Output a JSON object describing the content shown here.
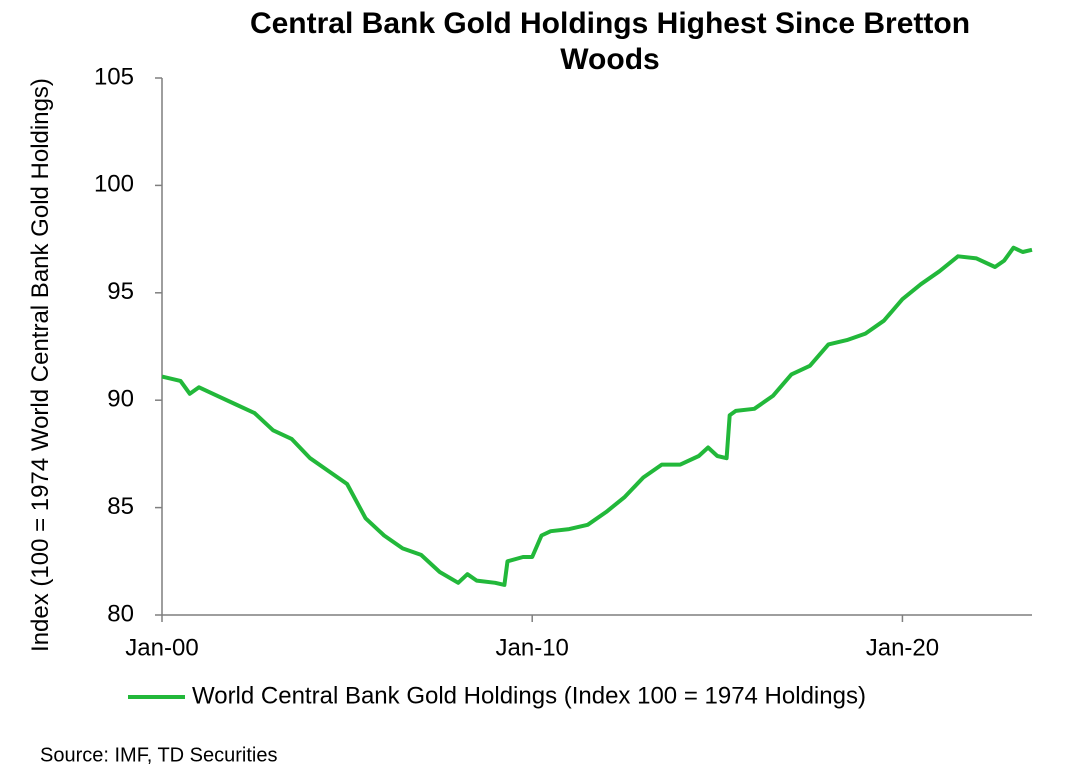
{
  "chart_data": {
    "type": "line",
    "title": "Central Bank Gold Holdings Highest Since Bretton Woods",
    "y_label": "Index (100 = 1974 World Central Bank Gold Holdings)",
    "source": "Source: IMF, TD Securities",
    "x": [
      "Jan-00",
      "Jul-00",
      "Oct-00",
      "Jan-01",
      "Jul-01",
      "Jan-02",
      "Jul-02",
      "Jan-03",
      "Jul-03",
      "Jan-04",
      "Jul-04",
      "Jan-05",
      "Jul-05",
      "Jan-06",
      "Jul-06",
      "Jan-07",
      "Jul-07",
      "Jan-08",
      "Apr-08",
      "Jul-08",
      "Jan-09",
      "Apr-09",
      "May-09",
      "Oct-09",
      "Jan-10",
      "Apr-10",
      "Jul-10",
      "Jan-11",
      "Jul-11",
      "Jan-12",
      "Jul-12",
      "Jan-13",
      "Jul-13",
      "Jan-14",
      "Jul-14",
      "Oct-14",
      "Jan-15",
      "Apr-15",
      "May-15",
      "Jul-15",
      "Jan-16",
      "Jul-16",
      "Jan-17",
      "Jul-17",
      "Jan-18",
      "Jul-18",
      "Jan-19",
      "Jul-19",
      "Jan-20",
      "Jul-20",
      "Jan-21",
      "Jul-21",
      "Jan-22",
      "Jul-22",
      "Oct-22",
      "Jan-23",
      "Apr-23",
      "Jul-23"
    ],
    "series": [
      {
        "name": "World Central Bank Gold Holdings (Index 100 = 1974 Holdings)",
        "color": "#22b83a",
        "values": [
          91.1,
          90.9,
          90.3,
          90.6,
          90.2,
          89.8,
          89.4,
          88.6,
          88.2,
          87.3,
          86.7,
          86.1,
          84.5,
          83.7,
          83.1,
          82.8,
          82.0,
          81.5,
          81.9,
          81.6,
          81.5,
          81.4,
          82.5,
          82.7,
          82.7,
          83.7,
          83.9,
          84.0,
          84.2,
          84.8,
          85.5,
          86.4,
          87.0,
          87.0,
          87.4,
          87.8,
          87.4,
          87.3,
          89.3,
          89.5,
          89.6,
          90.2,
          91.2,
          91.6,
          92.6,
          92.8,
          93.1,
          93.7,
          94.7,
          95.4,
          96.0,
          96.7,
          96.6,
          96.2,
          96.5,
          97.1,
          96.9,
          97.0
        ]
      }
    ],
    "xlim": [
      "Jan-00",
      "Jul-23"
    ],
    "xticks": [
      "Jan-00",
      "Jan-10",
      "Jan-20"
    ],
    "ylim": [
      80,
      105
    ],
    "yticks": [
      80,
      85,
      90,
      95,
      100,
      105
    ],
    "legend": "bottom"
  }
}
